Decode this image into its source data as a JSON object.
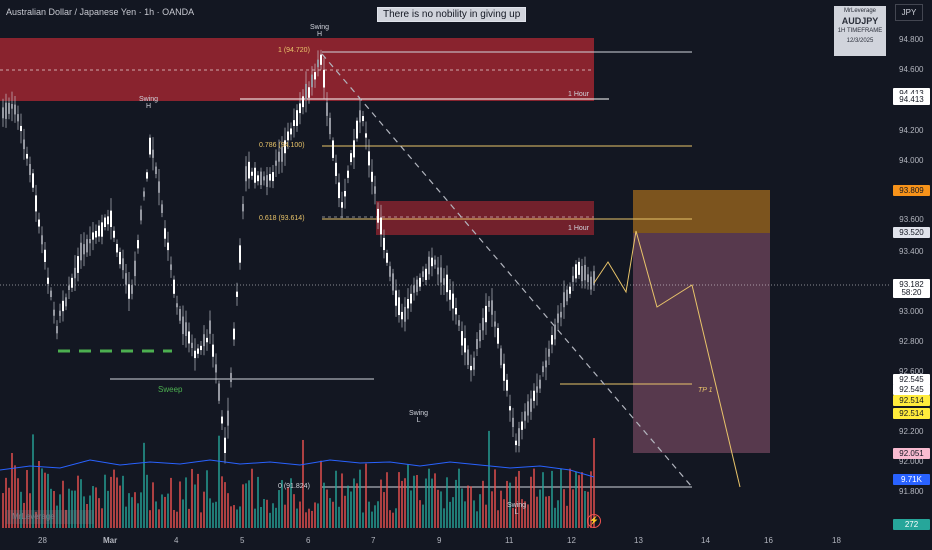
{
  "header": {
    "title": "Australian Dollar / Japanese Yen · 1h · OANDA",
    "banner": "There is no nobility in giving up",
    "currency": "JPY"
  },
  "info_box": {
    "author": "MrLeverage",
    "symbol": "AUDJPY",
    "timeframe": "1H TIMEFRAME",
    "date": "12/3/2025"
  },
  "watermark": "MrLeverage",
  "price_axis": {
    "ticks": [
      "94.800",
      "94.600",
      "94.200",
      "94.000",
      "93.400",
      "93.000",
      "92.800",
      "92.600",
      "92.200",
      "92.000",
      "91.800"
    ],
    "labels": [
      {
        "value": "94.413",
        "bg": "#ffffff",
        "fg": "#131722"
      },
      {
        "value": "94.413",
        "bg": "#ffffff",
        "fg": "#131722"
      },
      {
        "value": "93.809",
        "bg": "#f7931a",
        "fg": "#131722"
      },
      {
        "value": "93.600",
        "bg": "transparent",
        "fg": "#b2b5be"
      },
      {
        "value": "93.520",
        "bg": "#e0e3eb",
        "fg": "#131722"
      },
      {
        "value": "93.182",
        "bg": "#ffffff",
        "fg": "#131722"
      },
      {
        "value": "58:20",
        "bg": "#ffffff",
        "fg": "#131722"
      },
      {
        "value": "92.545",
        "bg": "#ffffff",
        "fg": "#131722"
      },
      {
        "value": "92.545",
        "bg": "#ffffff",
        "fg": "#131722"
      },
      {
        "value": "92.514",
        "bg": "#ffeb3b",
        "fg": "#131722"
      },
      {
        "value": "92.514",
        "bg": "#ffeb3b",
        "fg": "#131722"
      },
      {
        "value": "92.051",
        "bg": "#f8bbd0",
        "fg": "#131722"
      },
      {
        "value": "9.71K",
        "bg": "#2962ff",
        "fg": "#ffffff"
      },
      {
        "value": "272",
        "bg": "#26a69a",
        "fg": "#ffffff"
      }
    ]
  },
  "time_axis": [
    "28",
    "Mar",
    "4",
    "5",
    "6",
    "7",
    "9",
    "11",
    "12",
    "13",
    "14",
    "16",
    "18"
  ],
  "annotations": {
    "swing_h_top": "Swing\nH",
    "swing_h_left": "Swing\nH",
    "swing_l_mid": "Swing\nL",
    "swing_l_low": "Swing\nL",
    "fib_1": "1 (94.720)",
    "fib_786": "0.786 (94.100)",
    "fib_618": "0.618 (93.614)",
    "fib_0": "0 (91.824)",
    "zone_top": "1 Hour",
    "zone_mid": "1 Hour",
    "sweep": "Sweep",
    "tp": "TP 1"
  },
  "colors": {
    "bg": "#131722",
    "supply_zone": "#b22833",
    "target_box": "#7c4b66",
    "entry_box": "#a06a1e",
    "fib_line": "#e9c46a",
    "up_volume": "#26a69a",
    "down_volume": "#ef5350",
    "volume_ma": "#2962ff",
    "sweep_dash": "#4caf50"
  }
}
